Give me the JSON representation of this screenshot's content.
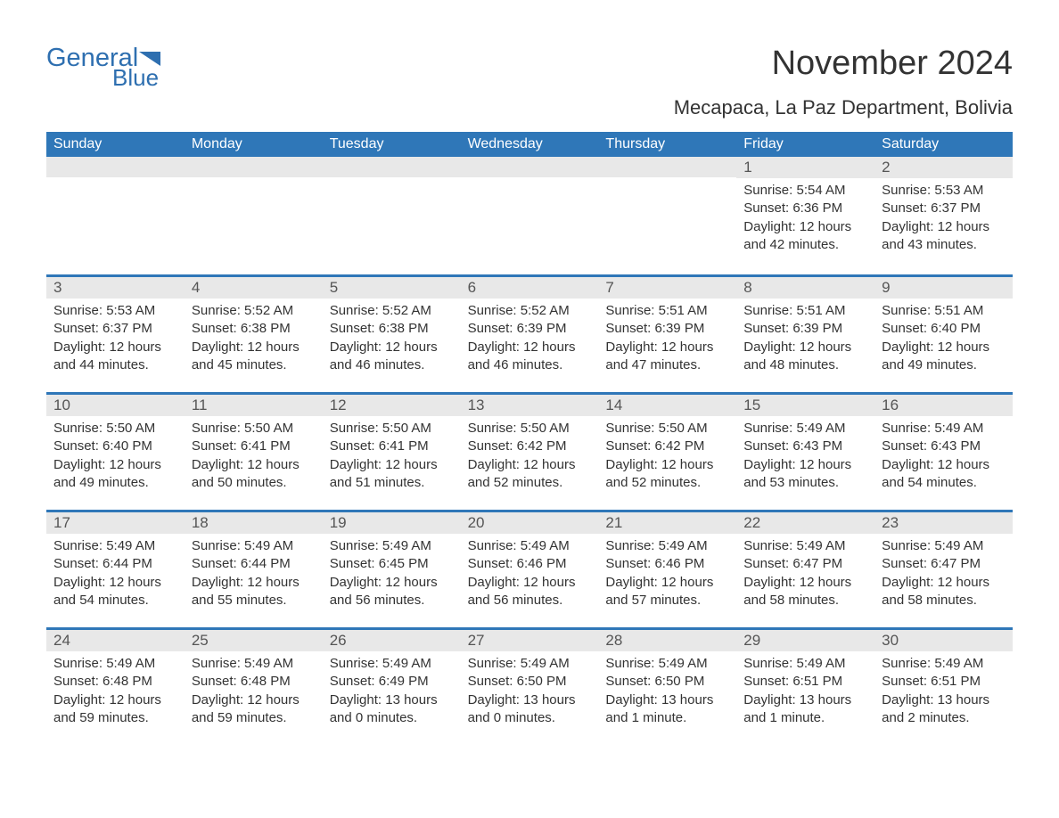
{
  "colors": {
    "header_blue": "#2f77b8",
    "logo_blue": "#2e6fb0",
    "daynum_bg": "#e8e8e8",
    "text": "#333333",
    "bg": "#ffffff"
  },
  "fontsizes": {
    "title": 38,
    "subtitle": 22,
    "dayhead": 16,
    "daynum": 17,
    "details": 15
  },
  "logo": {
    "part1": "General",
    "part2": "Blue"
  },
  "title": "November 2024",
  "subtitle": "Mecapaca, La Paz Department, Bolivia",
  "day_headers": [
    "Sunday",
    "Monday",
    "Tuesday",
    "Wednesday",
    "Thursday",
    "Friday",
    "Saturday"
  ],
  "leading_blanks": 5,
  "days": [
    {
      "n": 1,
      "sunrise": "5:54 AM",
      "sunset": "6:36 PM",
      "daylight": "12 hours and 42 minutes."
    },
    {
      "n": 2,
      "sunrise": "5:53 AM",
      "sunset": "6:37 PM",
      "daylight": "12 hours and 43 minutes."
    },
    {
      "n": 3,
      "sunrise": "5:53 AM",
      "sunset": "6:37 PM",
      "daylight": "12 hours and 44 minutes."
    },
    {
      "n": 4,
      "sunrise": "5:52 AM",
      "sunset": "6:38 PM",
      "daylight": "12 hours and 45 minutes."
    },
    {
      "n": 5,
      "sunrise": "5:52 AM",
      "sunset": "6:38 PM",
      "daylight": "12 hours and 46 minutes."
    },
    {
      "n": 6,
      "sunrise": "5:52 AM",
      "sunset": "6:39 PM",
      "daylight": "12 hours and 46 minutes."
    },
    {
      "n": 7,
      "sunrise": "5:51 AM",
      "sunset": "6:39 PM",
      "daylight": "12 hours and 47 minutes."
    },
    {
      "n": 8,
      "sunrise": "5:51 AM",
      "sunset": "6:39 PM",
      "daylight": "12 hours and 48 minutes."
    },
    {
      "n": 9,
      "sunrise": "5:51 AM",
      "sunset": "6:40 PM",
      "daylight": "12 hours and 49 minutes."
    },
    {
      "n": 10,
      "sunrise": "5:50 AM",
      "sunset": "6:40 PM",
      "daylight": "12 hours and 49 minutes."
    },
    {
      "n": 11,
      "sunrise": "5:50 AM",
      "sunset": "6:41 PM",
      "daylight": "12 hours and 50 minutes."
    },
    {
      "n": 12,
      "sunrise": "5:50 AM",
      "sunset": "6:41 PM",
      "daylight": "12 hours and 51 minutes."
    },
    {
      "n": 13,
      "sunrise": "5:50 AM",
      "sunset": "6:42 PM",
      "daylight": "12 hours and 52 minutes."
    },
    {
      "n": 14,
      "sunrise": "5:50 AM",
      "sunset": "6:42 PM",
      "daylight": "12 hours and 52 minutes."
    },
    {
      "n": 15,
      "sunrise": "5:49 AM",
      "sunset": "6:43 PM",
      "daylight": "12 hours and 53 minutes."
    },
    {
      "n": 16,
      "sunrise": "5:49 AM",
      "sunset": "6:43 PM",
      "daylight": "12 hours and 54 minutes."
    },
    {
      "n": 17,
      "sunrise": "5:49 AM",
      "sunset": "6:44 PM",
      "daylight": "12 hours and 54 minutes."
    },
    {
      "n": 18,
      "sunrise": "5:49 AM",
      "sunset": "6:44 PM",
      "daylight": "12 hours and 55 minutes."
    },
    {
      "n": 19,
      "sunrise": "5:49 AM",
      "sunset": "6:45 PM",
      "daylight": "12 hours and 56 minutes."
    },
    {
      "n": 20,
      "sunrise": "5:49 AM",
      "sunset": "6:46 PM",
      "daylight": "12 hours and 56 minutes."
    },
    {
      "n": 21,
      "sunrise": "5:49 AM",
      "sunset": "6:46 PM",
      "daylight": "12 hours and 57 minutes."
    },
    {
      "n": 22,
      "sunrise": "5:49 AM",
      "sunset": "6:47 PM",
      "daylight": "12 hours and 58 minutes."
    },
    {
      "n": 23,
      "sunrise": "5:49 AM",
      "sunset": "6:47 PM",
      "daylight": "12 hours and 58 minutes."
    },
    {
      "n": 24,
      "sunrise": "5:49 AM",
      "sunset": "6:48 PM",
      "daylight": "12 hours and 59 minutes."
    },
    {
      "n": 25,
      "sunrise": "5:49 AM",
      "sunset": "6:48 PM",
      "daylight": "12 hours and 59 minutes."
    },
    {
      "n": 26,
      "sunrise": "5:49 AM",
      "sunset": "6:49 PM",
      "daylight": "13 hours and 0 minutes."
    },
    {
      "n": 27,
      "sunrise": "5:49 AM",
      "sunset": "6:50 PM",
      "daylight": "13 hours and 0 minutes."
    },
    {
      "n": 28,
      "sunrise": "5:49 AM",
      "sunset": "6:50 PM",
      "daylight": "13 hours and 1 minute."
    },
    {
      "n": 29,
      "sunrise": "5:49 AM",
      "sunset": "6:51 PM",
      "daylight": "13 hours and 1 minute."
    },
    {
      "n": 30,
      "sunrise": "5:49 AM",
      "sunset": "6:51 PM",
      "daylight": "13 hours and 2 minutes."
    }
  ],
  "labels": {
    "sunrise": "Sunrise: ",
    "sunset": "Sunset: ",
    "daylight": "Daylight: "
  }
}
